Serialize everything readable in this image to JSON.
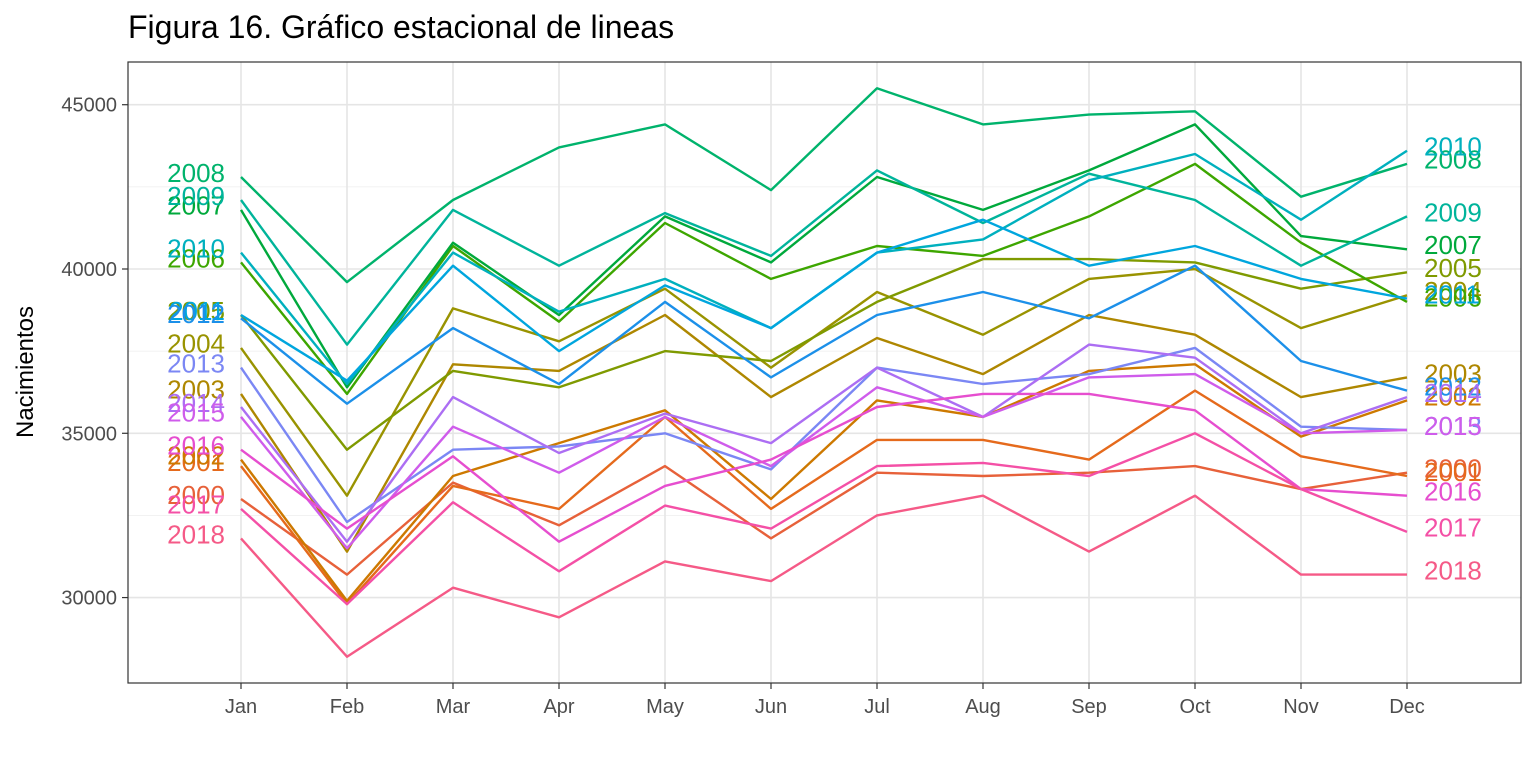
{
  "chart_data": {
    "type": "line",
    "title": "Figura 16. Gráfico estacional de lineas",
    "xlabel": "",
    "ylabel": "Nacimientos",
    "categories": [
      "Jan",
      "Feb",
      "Mar",
      "Apr",
      "May",
      "Jun",
      "Jul",
      "Aug",
      "Sep",
      "Oct",
      "Nov",
      "Dec"
    ],
    "ylim": [
      27400,
      46300
    ],
    "yticks": [
      30000,
      35000,
      40000,
      45000
    ],
    "grid": true,
    "legend": "none",
    "series_labels": "left-and-right-ends",
    "series": [
      {
        "name": "2000",
        "color": "#E7613A",
        "values": [
          33000,
          30700,
          33500,
          32200,
          34000,
          31800,
          33800,
          33700,
          33800,
          34000,
          33300,
          33800
        ]
      },
      {
        "name": "2001",
        "color": "#E56A1C",
        "values": [
          34000,
          29800,
          33400,
          32700,
          35500,
          32700,
          34800,
          34800,
          34200,
          36300,
          34300,
          33700
        ]
      },
      {
        "name": "2002",
        "color": "#CD7900",
        "values": [
          34200,
          29900,
          33700,
          34700,
          35700,
          33000,
          36000,
          35500,
          36900,
          37100,
          34900,
          36000
        ]
      },
      {
        "name": "2003",
        "color": "#AE8700",
        "values": [
          36200,
          31400,
          37100,
          36900,
          38600,
          36100,
          37900,
          36800,
          38600,
          38000,
          36100,
          36700
        ]
      },
      {
        "name": "2004",
        "color": "#999300",
        "values": [
          37600,
          33100,
          38800,
          37800,
          39400,
          37000,
          39300,
          38000,
          39700,
          40000,
          38200,
          39200
        ]
      },
      {
        "name": "2005",
        "color": "#7F9A00",
        "values": [
          38600,
          34500,
          36900,
          36400,
          37500,
          37200,
          39000,
          40300,
          40300,
          40200,
          39400,
          39900
        ]
      },
      {
        "name": "2006",
        "color": "#3DA600",
        "values": [
          40200,
          36200,
          40700,
          38400,
          41400,
          39700,
          40700,
          40400,
          41600,
          43200,
          40800,
          39000
        ]
      },
      {
        "name": "2007",
        "color": "#00A93C",
        "values": [
          41800,
          36400,
          40800,
          38600,
          41600,
          40200,
          42800,
          41800,
          43000,
          44400,
          41000,
          40600
        ]
      },
      {
        "name": "2008",
        "color": "#00B36C",
        "values": [
          42800,
          39600,
          42100,
          43700,
          44400,
          42400,
          45500,
          44400,
          44700,
          44800,
          42200,
          43200
        ]
      },
      {
        "name": "2009",
        "color": "#00B49B",
        "values": [
          42100,
          37700,
          41800,
          40100,
          41700,
          40400,
          43000,
          41400,
          42900,
          42100,
          40100,
          41600
        ]
      },
      {
        "name": "2010",
        "color": "#00B0BE",
        "values": [
          40500,
          36500,
          40500,
          38700,
          39700,
          38200,
          40500,
          40900,
          42700,
          43500,
          41500,
          43600
        ]
      },
      {
        "name": "2011",
        "color": "#00A6DE",
        "values": [
          38600,
          36600,
          40100,
          37500,
          39500,
          38200,
          40500,
          41500,
          40100,
          40700,
          39700,
          39100
        ]
      },
      {
        "name": "2012",
        "color": "#1C90E9",
        "values": [
          38500,
          35900,
          38200,
          36500,
          39000,
          36700,
          38600,
          39300,
          38500,
          40100,
          37200,
          36300
        ]
      },
      {
        "name": "2013",
        "color": "#7B87F4",
        "values": [
          37000,
          32300,
          34500,
          34600,
          35000,
          33900,
          37000,
          36500,
          36800,
          37600,
          35200,
          35100
        ]
      },
      {
        "name": "2014",
        "color": "#AC6EF3",
        "values": [
          35800,
          31700,
          36100,
          34400,
          35600,
          34700,
          37000,
          35500,
          37700,
          37300,
          35000,
          36100
        ]
      },
      {
        "name": "2015",
        "color": "#CF5CEB",
        "values": [
          35500,
          31500,
          35200,
          33800,
          35500,
          34000,
          36400,
          35500,
          36700,
          36800,
          35000,
          35100
        ]
      },
      {
        "name": "2016",
        "color": "#E64ECF",
        "values": [
          34500,
          32100,
          34300,
          31700,
          33400,
          34200,
          35800,
          36200,
          36200,
          35700,
          33300,
          33100
        ]
      },
      {
        "name": "2017",
        "color": "#F450A6",
        "values": [
          32700,
          29800,
          32900,
          30800,
          32800,
          32100,
          34000,
          34100,
          33700,
          35000,
          33300,
          32000
        ]
      },
      {
        "name": "2018",
        "color": "#F55A87",
        "values": [
          31800,
          28200,
          30300,
          29400,
          31100,
          30500,
          32500,
          33100,
          31400,
          33100,
          30700,
          30700
        ]
      }
    ]
  }
}
